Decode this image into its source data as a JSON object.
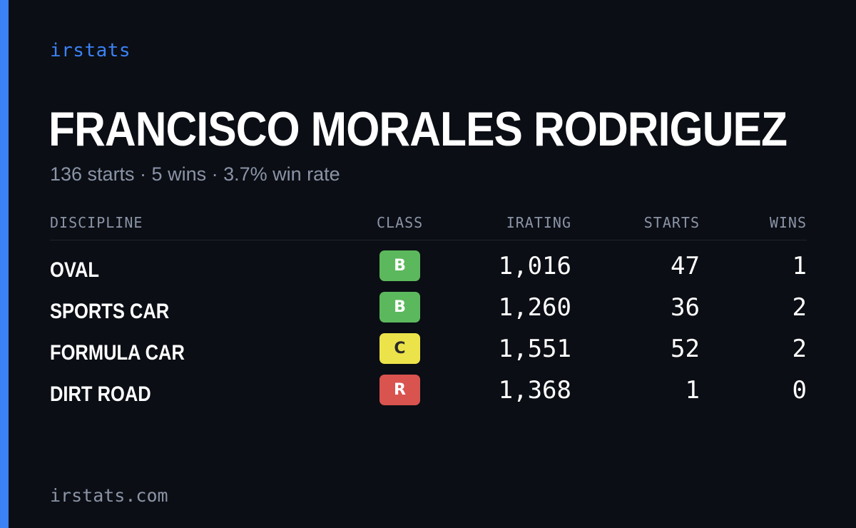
{
  "brand": "irstats",
  "driver": {
    "name": "FRANCISCO MORALES RODRIGUEZ",
    "summary": "136 starts · 5 wins · 3.7% win rate"
  },
  "table": {
    "headers": {
      "discipline": "DISCIPLINE",
      "class": "CLASS",
      "irating": "IRATING",
      "starts": "STARTS",
      "wins": "WINS"
    },
    "rows": [
      {
        "discipline": "OVAL",
        "class": "B",
        "class_bg": "#5cb85c",
        "class_fg": "#ffffff",
        "irating": "1,016",
        "starts": "47",
        "wins": "1"
      },
      {
        "discipline": "SPORTS CAR",
        "class": "B",
        "class_bg": "#5cb85c",
        "class_fg": "#ffffff",
        "irating": "1,260",
        "starts": "36",
        "wins": "2"
      },
      {
        "discipline": "FORMULA CAR",
        "class": "C",
        "class_bg": "#ece34b",
        "class_fg": "#2a2a2a",
        "irating": "1,551",
        "starts": "52",
        "wins": "2"
      },
      {
        "discipline": "DIRT ROAD",
        "class": "R",
        "class_bg": "#d9534f",
        "class_fg": "#ffffff",
        "irating": "1,368",
        "starts": "1",
        "wins": "0"
      }
    ]
  },
  "footer": "irstats.com",
  "colors": {
    "background": "#0b0e14",
    "accent": "#3b82f6",
    "muted": "#8b94a7",
    "class_b": "#5cb85c",
    "class_c": "#ece34b",
    "class_r": "#d9534f"
  }
}
